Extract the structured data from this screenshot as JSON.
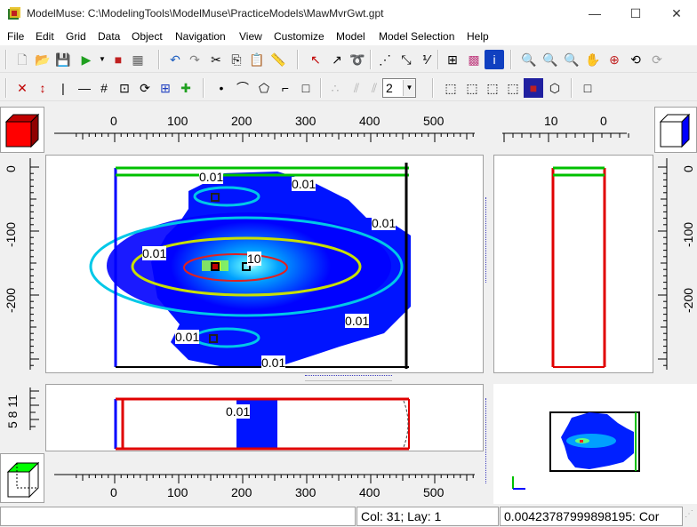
{
  "window": {
    "title": "ModelMuse: C:\\ModelingTools\\ModelMuse\\PracticeModels\\MawMvrGwt.gpt",
    "minimize": "—",
    "maximize": "☐",
    "close": "✕"
  },
  "menu": [
    "File",
    "Edit",
    "Grid",
    "Data",
    "Object",
    "Navigation",
    "View",
    "Customize",
    "Model",
    "Model Selection",
    "Help"
  ],
  "toolbar": {
    "layer_select_value": "2"
  },
  "rulers": {
    "top_x": [
      "0",
      "100",
      "200",
      "300",
      "400",
      "500"
    ],
    "top_side": [
      "10",
      "0"
    ],
    "left_y": [
      "0",
      "-100",
      "-200"
    ],
    "right_y": [
      "0",
      "-100",
      "-200"
    ],
    "front_z": "5 8 11",
    "bottom_x": [
      "0",
      "100",
      "200",
      "300",
      "400",
      "500"
    ]
  },
  "contours": {
    "top": [
      "0.01",
      "0.01",
      "0.01",
      "0.01",
      "10",
      "0.01",
      "0.01",
      "0.01"
    ],
    "front": [
      "0.01"
    ]
  },
  "status": {
    "cell": "Col: 31; Lay: 1",
    "value": "0.00423787999898195: Cor"
  },
  "colors": {
    "accent_blue": "#0000ff",
    "grid_red": "#e00000",
    "grid_green": "#00c000",
    "contour_cyan": "#00c8e8",
    "contour_yellow": "#c8e000"
  }
}
